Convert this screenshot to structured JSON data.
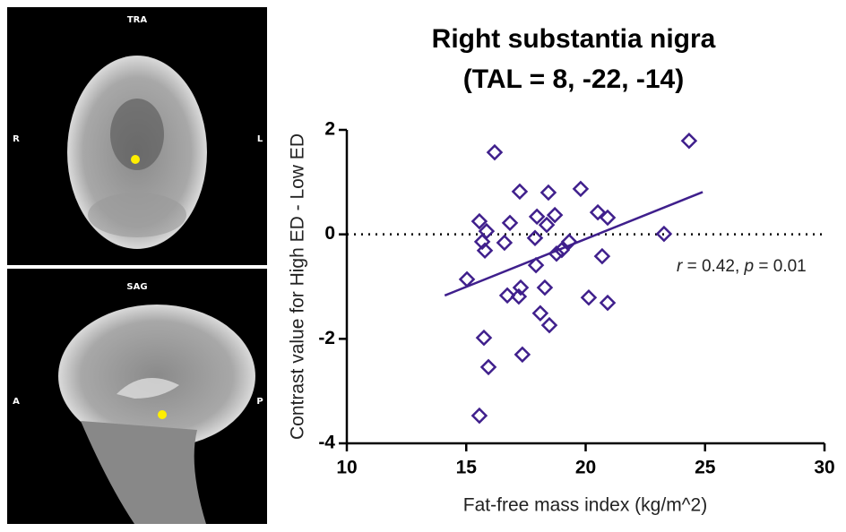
{
  "panels": [
    {
      "title": "TRA",
      "left": "R",
      "right": "L"
    },
    {
      "title": "SAG",
      "left": "A",
      "right": "P"
    }
  ],
  "chart_data": {
    "type": "scatter",
    "title": [
      "Right substantia nigra",
      "(TAL = 8, -22, -14)"
    ],
    "x_label": "Fat-free mass index (kg/m^2)",
    "y_label": "Contrast value for High ED - Low ED",
    "xlim": [
      10,
      30
    ],
    "xticks": [
      10,
      15,
      20,
      25,
      30
    ],
    "ylim": [
      -4,
      2
    ],
    "yticks": [
      -4,
      -2,
      0,
      2
    ],
    "reference_line": 0,
    "annotation": [
      "r",
      " = 0.42, ",
      "p",
      " = 0.01"
    ],
    "series": [
      {
        "type": "scatter",
        "color": "#3f1f8c",
        "x": [
          15.03,
          15.55,
          15.67,
          15.85,
          15.78,
          15.74,
          15.93,
          15.55,
          16.19,
          16.6,
          16.83,
          16.72,
          17.24,
          17.28,
          17.2,
          17.35,
          17.88,
          17.96,
          17.92,
          18.1,
          18.29,
          18.44,
          18.37,
          18.48,
          18.71,
          18.78,
          19.0,
          19.31,
          19.79,
          20.13,
          20.51,
          20.69,
          20.92,
          20.92,
          23.28,
          24.33
        ],
        "values": [
          -0.86,
          0.25,
          -0.14,
          0.06,
          -0.31,
          -1.98,
          -2.54,
          -3.47,
          1.57,
          -0.16,
          0.22,
          -1.17,
          0.82,
          -1.02,
          -1.19,
          -2.3,
          -0.07,
          0.34,
          -0.59,
          -1.51,
          -1.02,
          0.8,
          0.18,
          -1.74,
          0.37,
          -0.37,
          -0.3,
          -0.14,
          0.87,
          -1.21,
          0.42,
          -0.42,
          0.32,
          -1.31,
          0.01,
          1.79
        ]
      },
      {
        "type": "line",
        "color": "#3f1f8c",
        "x": [
          14.1,
          24.9
        ],
        "values": [
          -1.17,
          0.81
        ]
      }
    ]
  }
}
